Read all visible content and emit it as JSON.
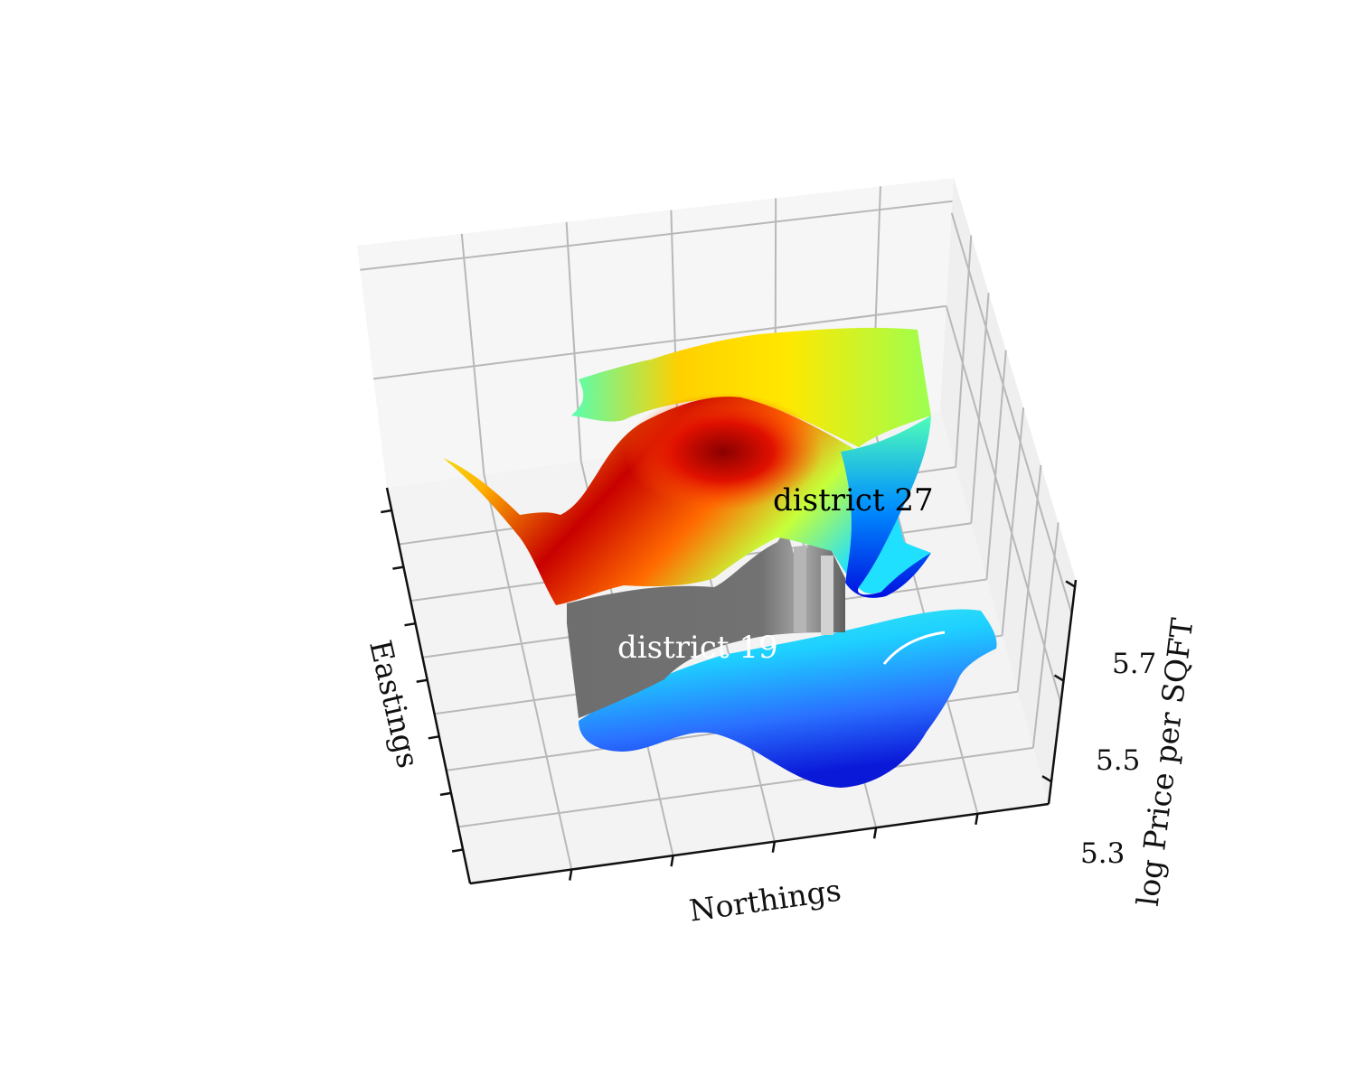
{
  "chart_data": {
    "type": "surface3d",
    "xlabel": "Northings",
    "ylabel": "Eastings",
    "zlabel": "log Price per SQFT",
    "z_ticks": [
      "5.3",
      "5.5",
      "5.7"
    ],
    "zlim": [
      5.3,
      5.7
    ],
    "grid": true,
    "colormap": "jet",
    "annotations": [
      {
        "text": "district 27",
        "color": "#000000"
      },
      {
        "text": "district 19",
        "color": "#ffffff"
      }
    ],
    "series": [
      {
        "label": "district 27",
        "z_range": [
          5.55,
          5.72
        ],
        "level": "high"
      },
      {
        "label": "district 19",
        "z_range": [
          5.32,
          5.45
        ],
        "level": "low"
      }
    ]
  }
}
